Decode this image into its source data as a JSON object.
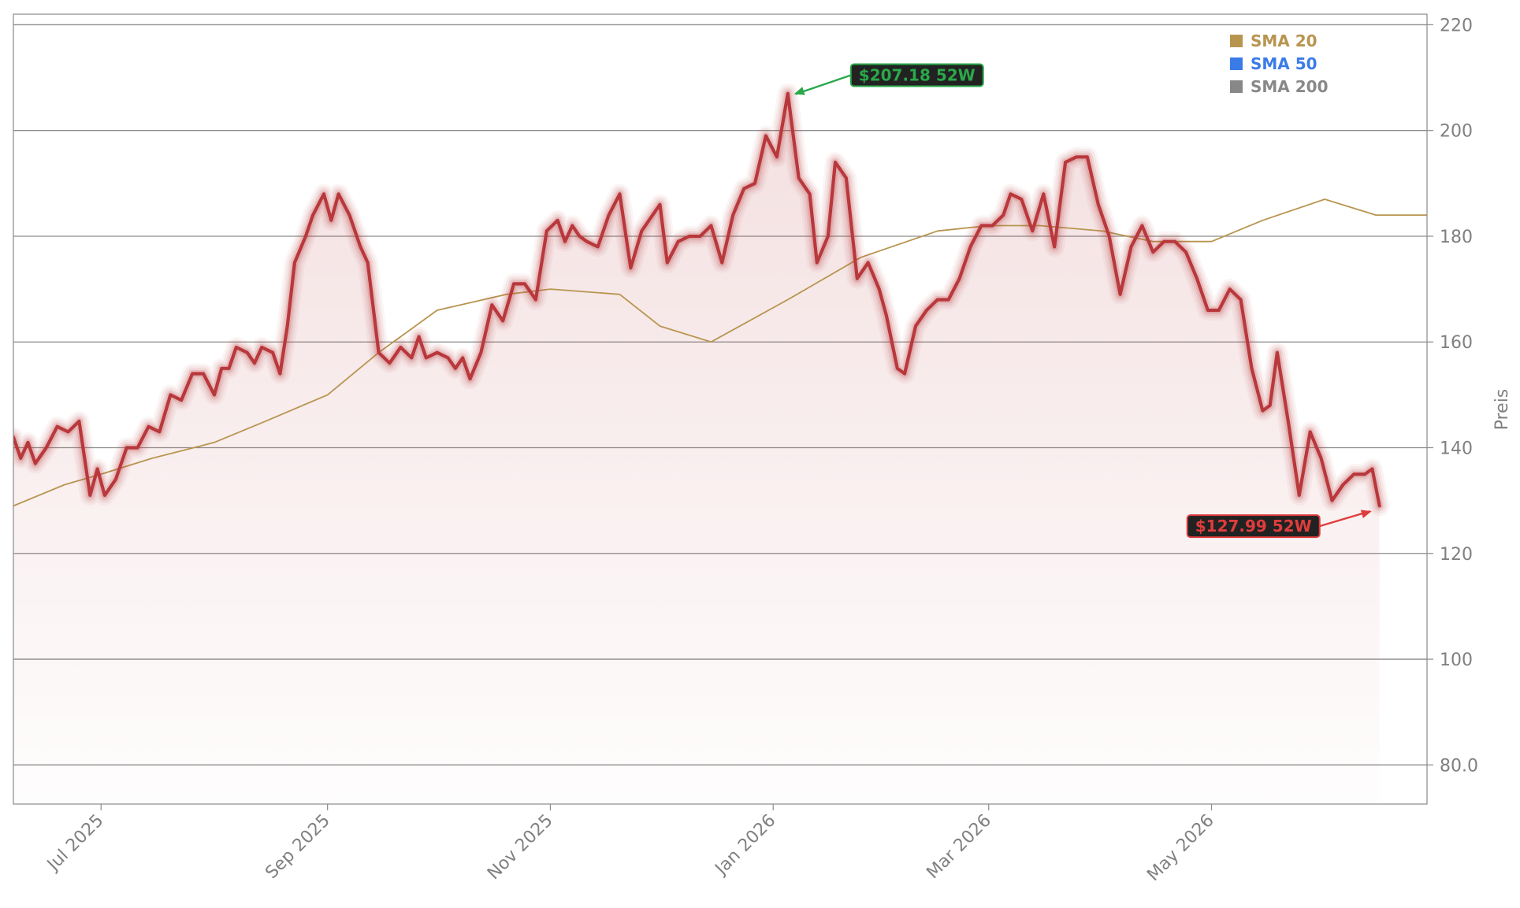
{
  "chart_data": {
    "type": "line",
    "title": "",
    "xlabel": "",
    "ylabel": "Preis",
    "ylim": [
      72.6,
      222
    ],
    "xlim": [
      "2025-06-07",
      "2026-06-29"
    ],
    "yticks": [
      80,
      100,
      120,
      140,
      160,
      180,
      200,
      220
    ],
    "ytick_labels": [
      "80.0",
      "100",
      "120",
      "140",
      "160",
      "180",
      "200",
      "220"
    ],
    "xticks": [
      "2025-07-01",
      "2025-09-01",
      "2025-11-01",
      "2026-01-01",
      "2026-03-01",
      "2026-05-01"
    ],
    "xtick_labels": [
      "Jul 2025",
      "Sep 2025",
      "Nov 2025",
      "Jan 2026",
      "Mar 2026",
      "May 2026"
    ],
    "grid": "horizontal",
    "legend_position": "top-right",
    "legend": [
      {
        "label": "SMA 20",
        "color": "#b8954f"
      },
      {
        "label": "SMA 50",
        "color": "#3b7be8"
      },
      {
        "label": "SMA 200",
        "color": "#888888"
      }
    ],
    "series": [
      {
        "name": "",
        "role": "price",
        "color": "#b8383c",
        "points": [
          [
            "2025-06-07",
            142
          ],
          [
            "2025-06-09",
            138
          ],
          [
            "2025-06-11",
            141
          ],
          [
            "2025-06-13",
            137
          ],
          [
            "2025-06-16",
            140
          ],
          [
            "2025-06-19",
            144
          ],
          [
            "2025-06-22",
            143
          ],
          [
            "2025-06-25",
            145
          ],
          [
            "2025-06-28",
            131
          ],
          [
            "2025-06-30",
            136
          ],
          [
            "2025-07-02",
            131
          ],
          [
            "2025-07-05",
            134
          ],
          [
            "2025-07-08",
            140
          ],
          [
            "2025-07-11",
            140
          ],
          [
            "2025-07-14",
            144
          ],
          [
            "2025-07-17",
            143
          ],
          [
            "2025-07-20",
            150
          ],
          [
            "2025-07-23",
            149
          ],
          [
            "2025-07-26",
            154
          ],
          [
            "2025-07-29",
            154
          ],
          [
            "2025-08-01",
            150
          ],
          [
            "2025-08-03",
            155
          ],
          [
            "2025-08-05",
            155
          ],
          [
            "2025-08-07",
            159
          ],
          [
            "2025-08-10",
            158
          ],
          [
            "2025-08-12",
            156
          ],
          [
            "2025-08-14",
            159
          ],
          [
            "2025-08-17",
            158
          ],
          [
            "2025-08-19",
            154
          ],
          [
            "2025-08-21",
            163
          ],
          [
            "2025-08-23",
            175
          ],
          [
            "2025-08-26",
            180
          ],
          [
            "2025-08-28",
            184
          ],
          [
            "2025-08-31",
            188
          ],
          [
            "2025-09-02",
            183
          ],
          [
            "2025-09-04",
            188
          ],
          [
            "2025-09-07",
            184
          ],
          [
            "2025-09-10",
            178
          ],
          [
            "2025-09-12",
            175
          ],
          [
            "2025-09-15",
            158
          ],
          [
            "2025-09-18",
            156
          ],
          [
            "2025-09-21",
            159
          ],
          [
            "2025-09-24",
            157
          ],
          [
            "2025-09-26",
            161
          ],
          [
            "2025-09-28",
            157
          ],
          [
            "2025-10-01",
            158
          ],
          [
            "2025-10-04",
            157
          ],
          [
            "2025-10-06",
            155
          ],
          [
            "2025-10-08",
            157
          ],
          [
            "2025-10-10",
            153
          ],
          [
            "2025-10-13",
            158
          ],
          [
            "2025-10-16",
            167
          ],
          [
            "2025-10-19",
            164
          ],
          [
            "2025-10-22",
            171
          ],
          [
            "2025-10-25",
            171
          ],
          [
            "2025-10-28",
            168
          ],
          [
            "2025-10-31",
            181
          ],
          [
            "2025-11-03",
            183
          ],
          [
            "2025-11-05",
            179
          ],
          [
            "2025-11-07",
            182
          ],
          [
            "2025-11-09",
            180
          ],
          [
            "2025-11-11",
            179
          ],
          [
            "2025-11-14",
            178
          ],
          [
            "2025-11-17",
            184
          ],
          [
            "2025-11-20",
            188
          ],
          [
            "2025-11-23",
            174
          ],
          [
            "2025-11-26",
            181
          ],
          [
            "2025-11-29",
            184
          ],
          [
            "2025-12-01",
            186
          ],
          [
            "2025-12-03",
            175
          ],
          [
            "2025-12-06",
            179
          ],
          [
            "2025-12-09",
            180
          ],
          [
            "2025-12-12",
            180
          ],
          [
            "2025-12-15",
            182
          ],
          [
            "2025-12-18",
            175
          ],
          [
            "2025-12-21",
            184
          ],
          [
            "2025-12-24",
            189
          ],
          [
            "2025-12-27",
            190
          ],
          [
            "2025-12-30",
            199
          ],
          [
            "2026-01-02",
            195
          ],
          [
            "2026-01-05",
            207
          ],
          [
            "2026-01-08",
            191
          ],
          [
            "2026-01-11",
            188
          ],
          [
            "2026-01-13",
            175
          ],
          [
            "2026-01-16",
            180
          ],
          [
            "2026-01-18",
            194
          ],
          [
            "2026-01-21",
            191
          ],
          [
            "2026-01-24",
            172
          ],
          [
            "2026-01-27",
            175
          ],
          [
            "2026-01-30",
            170
          ],
          [
            "2026-02-01",
            165
          ],
          [
            "2026-02-04",
            155
          ],
          [
            "2026-02-06",
            154
          ],
          [
            "2026-02-09",
            163
          ],
          [
            "2026-02-12",
            166
          ],
          [
            "2026-02-15",
            168
          ],
          [
            "2026-02-18",
            168
          ],
          [
            "2026-02-21",
            172
          ],
          [
            "2026-02-24",
            178
          ],
          [
            "2026-02-27",
            182
          ],
          [
            "2026-03-02",
            182
          ],
          [
            "2026-03-05",
            184
          ],
          [
            "2026-03-07",
            188
          ],
          [
            "2026-03-10",
            187
          ],
          [
            "2026-03-13",
            181
          ],
          [
            "2026-03-16",
            188
          ],
          [
            "2026-03-19",
            178
          ],
          [
            "2026-03-22",
            194
          ],
          [
            "2026-03-25",
            195
          ],
          [
            "2026-03-28",
            195
          ],
          [
            "2026-03-31",
            186
          ],
          [
            "2026-04-03",
            180
          ],
          [
            "2026-04-06",
            169
          ],
          [
            "2026-04-09",
            178
          ],
          [
            "2026-04-12",
            182
          ],
          [
            "2026-04-15",
            177
          ],
          [
            "2026-04-18",
            179
          ],
          [
            "2026-04-21",
            179
          ],
          [
            "2026-04-24",
            177
          ],
          [
            "2026-04-27",
            172
          ],
          [
            "2026-04-30",
            166
          ],
          [
            "2026-05-03",
            166
          ],
          [
            "2026-05-06",
            170
          ],
          [
            "2026-05-09",
            168
          ],
          [
            "2026-05-12",
            155
          ],
          [
            "2026-05-15",
            147
          ],
          [
            "2026-05-17",
            148
          ],
          [
            "2026-05-19",
            158
          ],
          [
            "2026-05-22",
            145
          ],
          [
            "2026-05-25",
            131
          ],
          [
            "2026-05-28",
            143
          ],
          [
            "2026-05-31",
            138
          ],
          [
            "2026-06-03",
            130
          ],
          [
            "2026-06-06",
            133
          ],
          [
            "2026-06-09",
            135
          ],
          [
            "2026-06-12",
            135
          ],
          [
            "2026-06-14",
            136
          ],
          [
            "2026-06-16",
            129
          ]
        ]
      },
      {
        "name": "SMA 20",
        "color": "#b8954f",
        "points": [
          [
            "2025-06-07",
            129
          ],
          [
            "2025-06-21",
            133
          ],
          [
            "2025-07-01",
            135
          ],
          [
            "2025-07-15",
            138
          ],
          [
            "2025-08-01",
            141
          ],
          [
            "2025-08-15",
            145
          ],
          [
            "2025-09-01",
            150
          ],
          [
            "2025-09-15",
            158
          ],
          [
            "2025-10-01",
            166
          ],
          [
            "2025-10-20",
            169
          ],
          [
            "2025-11-01",
            170
          ],
          [
            "2025-11-20",
            169
          ],
          [
            "2025-12-01",
            163
          ],
          [
            "2025-12-15",
            160
          ],
          [
            "2026-01-05",
            168
          ],
          [
            "2026-01-25",
            176
          ],
          [
            "2026-02-15",
            181
          ],
          [
            "2026-03-01",
            182
          ],
          [
            "2026-03-15",
            182
          ],
          [
            "2026-04-01",
            181
          ],
          [
            "2026-04-15",
            179
          ],
          [
            "2026-05-01",
            179
          ],
          [
            "2026-05-15",
            183
          ],
          [
            "2026-06-01",
            187
          ],
          [
            "2026-06-15",
            184
          ],
          [
            "2026-06-29",
            184
          ]
        ]
      }
    ],
    "annotations": [
      {
        "label": "$207.18 52W",
        "kind": "max",
        "value": 207.18,
        "date": "2026-01-05",
        "color": "#2aa84a"
      },
      {
        "label": "$127.99 52W",
        "kind": "min",
        "value": 127.99,
        "date": "2026-06-16",
        "color": "#e03c3c"
      }
    ]
  }
}
